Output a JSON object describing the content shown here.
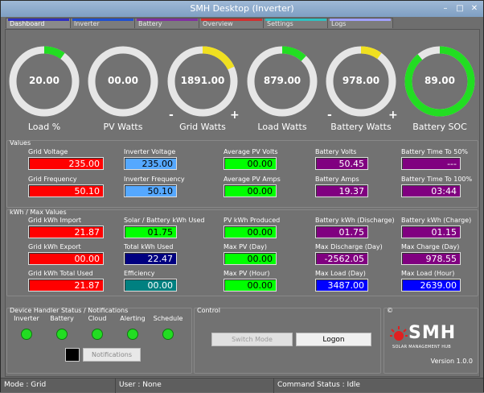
{
  "window": {
    "title": "SMH Desktop (Inverter)"
  },
  "tabs": [
    {
      "label": "Dashboard",
      "color": "#3030c0"
    },
    {
      "label": "Inverter",
      "color": "#2050d0"
    },
    {
      "label": "Battery",
      "color": "#8030a0"
    },
    {
      "label": "Overview",
      "color": "#d03030"
    },
    {
      "label": "Settings",
      "color": "#30c0c0"
    },
    {
      "label": "Logs",
      "color": "#a0a0ff"
    }
  ],
  "gauges": [
    {
      "value": "20.00",
      "label": "Load %",
      "level": 0.1,
      "color": "#22dd22"
    },
    {
      "value": "00.00",
      "label": "PV Watts",
      "level": 0,
      "color": "#22dd22"
    },
    {
      "value": "1891.00",
      "label": "Grid Watts",
      "level": 0.18,
      "color": "#f0e020",
      "minus": "-",
      "plus": "+"
    },
    {
      "value": "879.00",
      "label": "Load Watts",
      "level": 0.12,
      "color": "#22dd22"
    },
    {
      "value": "978.00",
      "label": "Battery Watts",
      "level": 0.1,
      "color": "#f0e020",
      "minus": "-",
      "plus": "+"
    },
    {
      "value": "89.00",
      "label": "Battery SOC",
      "level": 0.89,
      "color": "#22dd22"
    }
  ],
  "values_group": {
    "title": "Values",
    "fields": [
      {
        "label": "Grid Voltage",
        "value": "235.00",
        "bg": "#ff0000",
        "fg": "#ffffff"
      },
      {
        "label": "Inverter Voltage",
        "value": "235.00",
        "bg": "#55a8ff",
        "fg": "#000000"
      },
      {
        "label": "Average PV Volts",
        "value": "00.00",
        "bg": "#00ff00",
        "fg": "#000000"
      },
      {
        "label": "Battery Volts",
        "value": "50.45",
        "bg": "#800080",
        "fg": "#ffffff"
      },
      {
        "label": "Battery Time To 50%",
        "value": "---",
        "bg": "#800080",
        "fg": "#ffffff"
      },
      {
        "label": "Grid Frequency",
        "value": "50.10",
        "bg": "#ff0000",
        "fg": "#ffffff"
      },
      {
        "label": "Inverter Frequency",
        "value": "50.10",
        "bg": "#55a8ff",
        "fg": "#000000"
      },
      {
        "label": "Average PV Amps",
        "value": "00.00",
        "bg": "#00ff00",
        "fg": "#000000"
      },
      {
        "label": "Battery Amps",
        "value": "19.37",
        "bg": "#800080",
        "fg": "#ffffff"
      },
      {
        "label": "Battery Time To 100%",
        "value": "03:44",
        "bg": "#800080",
        "fg": "#ffffff"
      }
    ]
  },
  "kwh_group": {
    "title": "kWh / Max Values",
    "fields": [
      {
        "label": "Grid kWh Import",
        "value": "21.87",
        "bg": "#ff0000",
        "fg": "#ffffff"
      },
      {
        "label": "Solar / Battery kWh Used",
        "value": "01.75",
        "bg": "#00ff00",
        "fg": "#000000"
      },
      {
        "label": "PV kWh Produced",
        "value": "00.00",
        "bg": "#00ff00",
        "fg": "#000000"
      },
      {
        "label": "Battery kWh (Discharge)",
        "value": "01.75",
        "bg": "#800080",
        "fg": "#ffffff"
      },
      {
        "label": "Battery kWh (Charge)",
        "value": "01.15",
        "bg": "#800080",
        "fg": "#ffffff"
      },
      {
        "label": "Grid kWh Export",
        "value": "00.00",
        "bg": "#ff0000",
        "fg": "#ffffff"
      },
      {
        "label": "Total kWh Used",
        "value": "22.47",
        "bg": "#000080",
        "fg": "#ffffff"
      },
      {
        "label": "Max PV (Day)",
        "value": "00.00",
        "bg": "#00ff00",
        "fg": "#000000"
      },
      {
        "label": "Max Discharge (Day)",
        "value": "-2562.05",
        "bg": "#800080",
        "fg": "#ffffff"
      },
      {
        "label": "Max Charge (Day)",
        "value": "978.55",
        "bg": "#800080",
        "fg": "#ffffff"
      },
      {
        "label": "Grid kWh Total Used",
        "value": "21.87",
        "bg": "#ff0000",
        "fg": "#ffffff"
      },
      {
        "label": "Efficiency",
        "value": "00.00",
        "bg": "#008080",
        "fg": "#ffffff"
      },
      {
        "label": "Max PV (Hour)",
        "value": "00.00",
        "bg": "#00ff00",
        "fg": "#000000"
      },
      {
        "label": "Max Load (Day)",
        "value": "3487.00",
        "bg": "#0000ff",
        "fg": "#ffffff"
      },
      {
        "label": "Max Load (Hour)",
        "value": "2639.00",
        "bg": "#0000ff",
        "fg": "#ffffff"
      }
    ]
  },
  "devices": {
    "title": "Device Handler Status / Notifications",
    "items": [
      "Inverter",
      "Battery",
      "Cloud",
      "Alerting",
      "Schedule"
    ],
    "notifications_label": "Notifications"
  },
  "control": {
    "title": "Control",
    "switch_mode": "Switch Mode",
    "logon": "Logon"
  },
  "about": {
    "title": "©",
    "logo_text": "SMH",
    "logo_sub": "SOLAR MANAGEMENT HUB",
    "version": "Version 1.0.0"
  },
  "status": {
    "mode": "Mode : Grid",
    "user": "User : None",
    "command": "Command Status : Idle"
  }
}
